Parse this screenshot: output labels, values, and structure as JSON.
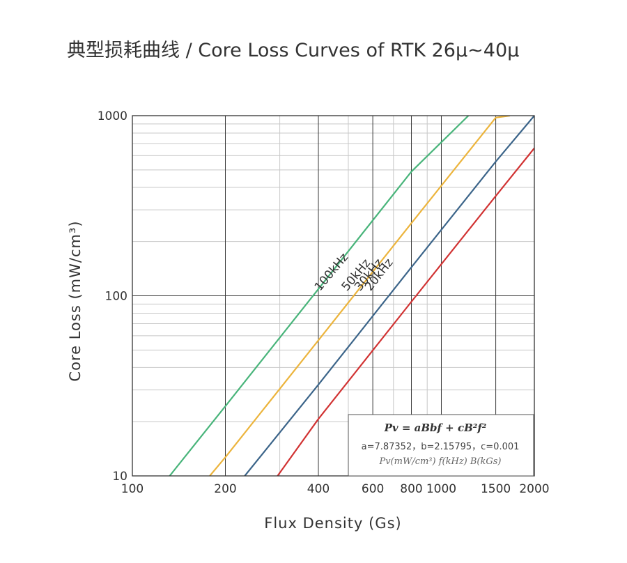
{
  "title": "典型损耗曲线 / Core Loss Curves of RTK 26μ~40μ",
  "chart_data": {
    "type": "line",
    "title": "典型损耗曲线 / Core Loss Curves of RTK 26μ~40μ",
    "xlabel": "Flux Density (Gs)",
    "ylabel": "Core Loss (mW/cm³)",
    "xscale": "log",
    "yscale": "log",
    "xlim": [
      100,
      2000
    ],
    "ylim": [
      10,
      1000
    ],
    "grid": true,
    "x_ticks": [
      {
        "v": 100,
        "label": "100"
      },
      {
        "v": 200,
        "label": "200"
      },
      {
        "v": 400,
        "label": "400"
      },
      {
        "v": 600,
        "label": "600"
      },
      {
        "v": 800,
        "label": "800"
      },
      {
        "v": 1000,
        "label": "1000"
      },
      {
        "v": 1500,
        "label": "1500"
      },
      {
        "v": 2000,
        "label": "2000"
      }
    ],
    "y_ticks": [
      {
        "v": 10,
        "label": "10"
      },
      {
        "v": 100,
        "label": "100"
      },
      {
        "v": 1000,
        "label": "1000"
      }
    ],
    "x_major_grid": [
      200,
      400,
      600,
      800,
      1000,
      1500
    ],
    "x_minor_grid": [
      300,
      500,
      700,
      900,
      2000
    ],
    "series": [
      {
        "name": "100kHz",
        "color": "#48b47a",
        "x": [
          132,
          200,
          400,
          800,
          1224
        ],
        "y": [
          10,
          24.4,
          109,
          489,
          1000
        ]
      },
      {
        "name": "50kHz",
        "color": "#ecb43c",
        "x": [
          178,
          200,
          400,
          800,
          1500,
          1668
        ],
        "y": [
          10,
          12.7,
          56.6,
          253,
          975,
          1000
        ]
      },
      {
        "name": "30kHz",
        "color": "#3b6489",
        "x": [
          231,
          400,
          800,
          1500,
          2000
        ],
        "y": [
          10,
          32.1,
          144,
          556,
          1000
        ]
      },
      {
        "name": "20kHz",
        "color": "#d13232",
        "x": [
          295,
          400,
          800,
          1500,
          2000
        ],
        "y": [
          10,
          20.7,
          92.7,
          358,
          660
        ]
      }
    ],
    "curve_label_anchor_x": [
      405,
      495,
      546,
      590
    ],
    "formula": {
      "equation": "Pv = aBbf + cB²f²",
      "coefficients": "a=7.87352，b=2.15795，c=0.001",
      "units": "Pv(mW/cm³) f(kHz) B(kGs)"
    }
  }
}
